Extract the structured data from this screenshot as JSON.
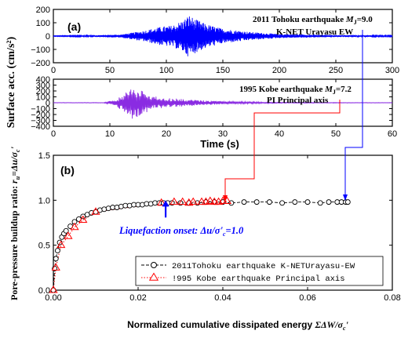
{
  "colors": {
    "trace1": "#0000ff",
    "trace2": "#8a2be2",
    "series1": "#000000",
    "series2": "#ff0000",
    "onset_label": "#0000ff",
    "onset_arrow": "#0000ff",
    "connector_red": "#ff0000",
    "connector_blue": "#0000ff"
  },
  "shared": {
    "ylabel_ab": "Surface acc. (cm/s²)",
    "time_label": "Time (s)"
  },
  "chart_data": [
    {
      "type": "line",
      "panel": "(a)",
      "panel_label": "(a)",
      "annotation_line1_text": "2011 Tohoku earthquake",
      "annotation_line1_sym": "M",
      "annotation_line1_sub": "J",
      "annotation_line1_val": "=9.0",
      "annotation_line2": "K-NET Urayasu EW",
      "xlim": [
        0,
        300
      ],
      "ylim": [
        -200,
        200
      ],
      "xticks": [
        0,
        50,
        100,
        150,
        200,
        250,
        300
      ],
      "yticks": [
        -200,
        -100,
        0,
        100,
        200
      ],
      "ytick_labels": [
        "−200",
        "−100",
        "0",
        "100",
        "200"
      ],
      "grid": false,
      "series": [
        {
          "envelope": [
            [
              0,
              2
            ],
            [
              30,
              5
            ],
            [
              60,
              12
            ],
            [
              80,
              40
            ],
            [
              95,
              70
            ],
            [
              105,
              80
            ],
            [
              115,
              120
            ],
            [
              120,
              160
            ],
            [
              125,
              130
            ],
            [
              135,
              90
            ],
            [
              150,
              55
            ],
            [
              175,
              30
            ],
            [
              200,
              15
            ],
            [
              250,
              8
            ],
            [
              300,
              4
            ]
          ],
          "approx_peak_abs": 160
        }
      ]
    },
    {
      "type": "line",
      "panel": "kobe-time-history",
      "annotation_line1_text": "1995 Kobe earthquake",
      "annotation_line1_sym": "M",
      "annotation_line1_sub": "J",
      "annotation_line1_val": "=7.2",
      "annotation_line2": "PI Principal axis",
      "xlim": [
        0,
        60
      ],
      "ylim": [
        -400,
        400
      ],
      "xticks": [
        0,
        10,
        20,
        30,
        40,
        50,
        60
      ],
      "yticks": [
        -400,
        -300,
        -200,
        -100,
        0,
        100,
        200,
        300,
        400
      ],
      "ytick_labels": [
        "−400",
        "−300",
        "−200",
        "−100",
        "0",
        "100",
        "200",
        "300",
        "400"
      ],
      "grid": false,
      "series": [
        {
          "envelope": [
            [
              0,
              3
            ],
            [
              9,
              5
            ],
            [
              11,
              60
            ],
            [
              12,
              120
            ],
            [
              13,
              200
            ],
            [
              14,
              280
            ],
            [
              15,
              250
            ],
            [
              16,
              180
            ],
            [
              18,
              110
            ],
            [
              20,
              80
            ],
            [
              25,
              50
            ],
            [
              30,
              25
            ],
            [
              40,
              8
            ],
            [
              60,
              3
            ]
          ],
          "approx_peak_abs": 300
        }
      ]
    },
    {
      "type": "line",
      "panel": "(b)",
      "panel_label": "(b)",
      "ylabel": "Pore-pressure buildup ratio: r_u=Δu/σ_c'",
      "ylabel_plain": "Pore-pressure buildup ratio: ",
      "ylabel_r": "r",
      "ylabel_r_sub": "u",
      "ylabel_eq": "=Δu/σ",
      "ylabel_c_sub": "c",
      "ylabel_prime": "'",
      "xlabel": "Normalized cumulative dissipated energy ΣΔW/σ_c'",
      "xlabel_plain": "Normalized cumulative dissipated energy ",
      "xlabel_math": "ΣΔW/σ",
      "xlabel_c_sub": "c",
      "xlabel_prime": "'",
      "xlim": [
        0,
        0.08
      ],
      "ylim": [
        0,
        1.5
      ],
      "xticks": [
        0,
        0.02,
        0.04,
        0.06,
        0.08
      ],
      "xtick_labels": [
        "0.00",
        "0.02",
        "0.04",
        "0.06",
        "0.08"
      ],
      "yticks": [
        0,
        0.5,
        1.0,
        1.5
      ],
      "ytick_labels": [
        "0.0",
        "0.5",
        "1.0",
        "1.5"
      ],
      "grid": false,
      "legend_position": "bottom-right",
      "series": [
        {
          "name": "2011Tohoku earthquake K-NETUrayasu-EW",
          "marker": "circle",
          "line": "dash",
          "x": [
            0.0,
            0.0003,
            0.0006,
            0.001,
            0.0015,
            0.002,
            0.0025,
            0.003,
            0.004,
            0.005,
            0.006,
            0.007,
            0.008,
            0.009,
            0.01,
            0.011,
            0.012,
            0.013,
            0.014,
            0.015,
            0.016,
            0.017,
            0.018,
            0.019,
            0.02,
            0.021,
            0.022,
            0.023,
            0.024,
            0.025,
            0.026,
            0.027,
            0.028,
            0.03,
            0.032,
            0.034,
            0.036,
            0.038,
            0.04,
            0.042,
            0.045,
            0.048,
            0.051,
            0.054,
            0.057,
            0.06,
            0.063,
            0.065,
            0.067,
            0.068,
            0.069,
            0.0695
          ],
          "y": [
            0.0,
            0.24,
            0.35,
            0.44,
            0.53,
            0.59,
            0.63,
            0.66,
            0.71,
            0.76,
            0.79,
            0.82,
            0.84,
            0.86,
            0.87,
            0.89,
            0.9,
            0.91,
            0.92,
            0.92,
            0.93,
            0.94,
            0.94,
            0.95,
            0.95,
            0.95,
            0.96,
            0.96,
            0.97,
            0.97,
            0.97,
            0.97,
            0.97,
            0.97,
            0.97,
            0.97,
            0.98,
            0.98,
            0.98,
            0.97,
            0.98,
            0.98,
            0.98,
            0.97,
            0.98,
            0.98,
            0.97,
            0.98,
            0.98,
            0.98,
            0.98,
            0.98
          ]
        },
        {
          "name": "!995 Kobe earthquake Principal axis",
          "marker": "triangle",
          "line": "dot",
          "x": [
            0.0,
            0.0006,
            0.0018,
            0.0035,
            0.005,
            0.007,
            0.01,
            0.0255,
            0.0285,
            0.0305,
            0.032,
            0.033,
            0.035,
            0.036,
            0.037,
            0.038,
            0.039,
            0.04,
            0.041
          ],
          "y": [
            0.0,
            0.25,
            0.5,
            0.6,
            0.7,
            0.78,
            0.87,
            0.97,
            0.98,
            0.98,
            0.97,
            0.98,
            0.98,
            0.98,
            0.99,
            0.98,
            0.98,
            0.99,
            0.99
          ]
        }
      ],
      "onset": {
        "label_text": "Liquefaction onset: ",
        "label_math": "Δu/σ'",
        "label_sub": "c",
        "label_val": "=1.0",
        "x": 0.0265,
        "y": 1.0
      }
    }
  ]
}
